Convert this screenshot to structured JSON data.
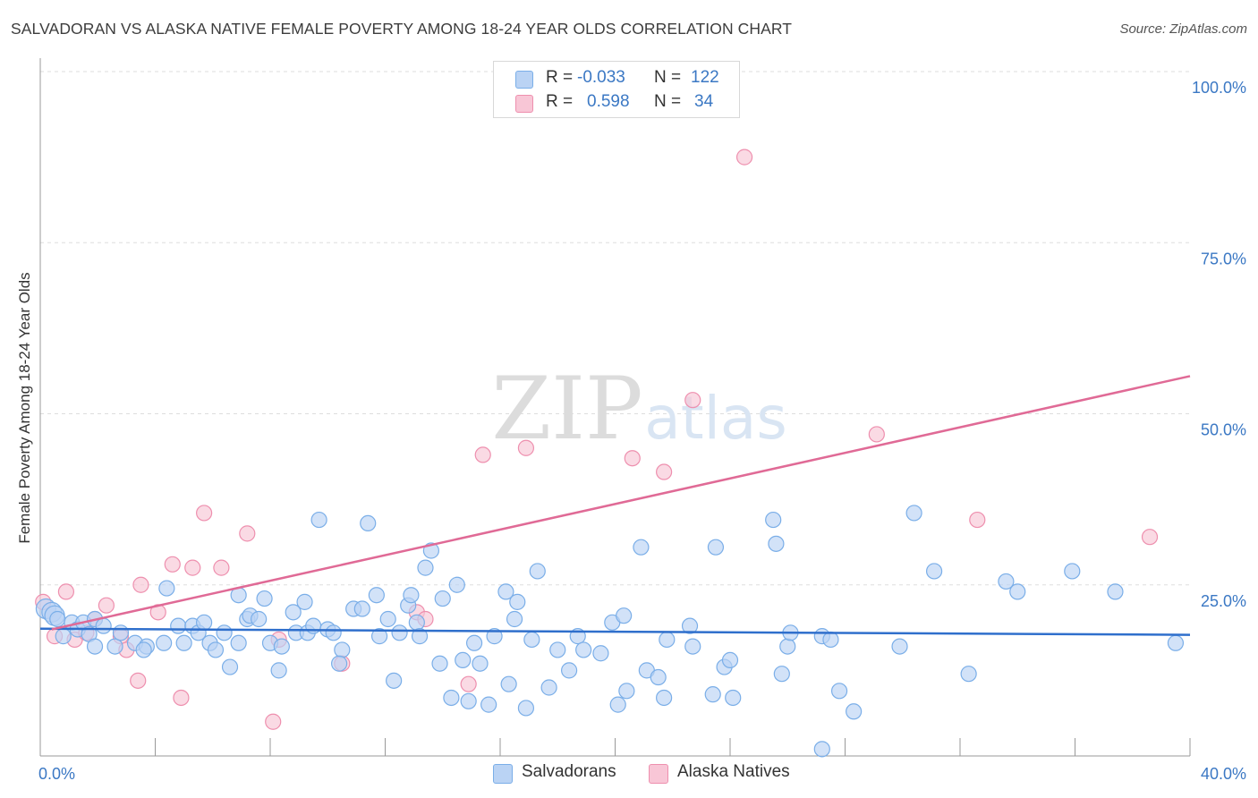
{
  "title": "SALVADORAN VS ALASKA NATIVE FEMALE POVERTY AMONG 18-24 YEAR OLDS CORRELATION CHART",
  "source": "Source: ZipAtlas.com",
  "watermark": {
    "zip": "ZIP",
    "atlas": "atlas"
  },
  "legend": {
    "r_label": "R =",
    "n_label": "N =",
    "rows": [
      {
        "name": "Salvadorans",
        "r": "-0.033",
        "n": "122",
        "color": "#7aaee8",
        "fill": "#bad3f4"
      },
      {
        "name": "Alaska Natives",
        "r": "0.598",
        "n": "34",
        "color": "#ee8fae",
        "fill": "#f8c6d6"
      }
    ]
  },
  "colors": {
    "blue_line": "#2f6fcc",
    "pink_line": "#e06a96",
    "axis_label": "#3b78c4",
    "grid": "#dddddd"
  },
  "chart_data": {
    "type": "scatter",
    "title": "SALVADORAN VS ALASKA NATIVE FEMALE POVERTY AMONG 18-24 YEAR OLDS CORRELATION CHART",
    "xlabel": "",
    "ylabel": "Female Poverty Among 18-24 Year Olds",
    "xlim": [
      0,
      40
    ],
    "ylim": [
      0,
      105
    ],
    "x_tick_labels": [
      {
        "value": 0,
        "label": "0.0%"
      },
      {
        "value": 40,
        "label": "40.0%"
      }
    ],
    "y_tick_labels": [
      {
        "value": 25,
        "label": "25.0%"
      },
      {
        "value": 50,
        "label": "50.0%"
      },
      {
        "value": 75,
        "label": "75.0%"
      },
      {
        "value": 100,
        "label": "100.0%"
      }
    ],
    "grid": true,
    "legend_position": "top-center",
    "series": [
      {
        "name": "Salvadorans",
        "trend": [
          [
            0,
            18.6
          ],
          [
            40,
            17.7
          ]
        ],
        "points": [
          [
            0.2,
            21.5
          ],
          [
            0.4,
            21.0
          ],
          [
            0.5,
            20.5
          ],
          [
            0.6,
            20.0
          ],
          [
            0.8,
            17.5
          ],
          [
            1.1,
            19.5
          ],
          [
            1.3,
            18.5
          ],
          [
            1.5,
            19.5
          ],
          [
            1.7,
            17.8
          ],
          [
            1.9,
            20.0
          ],
          [
            2.2,
            19.0
          ],
          [
            1.9,
            16.0
          ],
          [
            2.6,
            16.0
          ],
          [
            2.8,
            18.0
          ],
          [
            3.3,
            16.5
          ],
          [
            3.7,
            16.0
          ],
          [
            4.3,
            16.5
          ],
          [
            3.6,
            15.5
          ],
          [
            4.4,
            24.5
          ],
          [
            4.8,
            19.0
          ],
          [
            5.0,
            16.5
          ],
          [
            5.3,
            19.0
          ],
          [
            5.5,
            18.0
          ],
          [
            5.7,
            19.5
          ],
          [
            5.9,
            16.5
          ],
          [
            6.1,
            15.5
          ],
          [
            6.4,
            18.0
          ],
          [
            6.6,
            13.0
          ],
          [
            6.9,
            16.5
          ],
          [
            6.9,
            23.5
          ],
          [
            7.2,
            20.0
          ],
          [
            7.3,
            20.5
          ],
          [
            7.6,
            20.0
          ],
          [
            7.8,
            23.0
          ],
          [
            8.0,
            16.5
          ],
          [
            8.3,
            12.5
          ],
          [
            8.4,
            16.0
          ],
          [
            8.8,
            21.0
          ],
          [
            8.9,
            18.0
          ],
          [
            9.2,
            22.5
          ],
          [
            9.3,
            18.0
          ],
          [
            9.5,
            19.0
          ],
          [
            9.7,
            34.5
          ],
          [
            10.0,
            18.5
          ],
          [
            10.2,
            18.0
          ],
          [
            10.5,
            15.5
          ],
          [
            10.4,
            13.5
          ],
          [
            10.9,
            21.5
          ],
          [
            11.2,
            21.5
          ],
          [
            11.4,
            34.0
          ],
          [
            11.7,
            23.5
          ],
          [
            11.8,
            17.5
          ],
          [
            12.1,
            20.0
          ],
          [
            12.3,
            11.0
          ],
          [
            12.5,
            18.0
          ],
          [
            12.8,
            22.0
          ],
          [
            12.9,
            23.5
          ],
          [
            13.1,
            19.5
          ],
          [
            13.4,
            27.5
          ],
          [
            13.6,
            30.0
          ],
          [
            13.2,
            17.5
          ],
          [
            13.9,
            13.5
          ],
          [
            14.0,
            23.0
          ],
          [
            14.3,
            8.5
          ],
          [
            14.5,
            25.0
          ],
          [
            14.7,
            14.0
          ],
          [
            14.9,
            8.0
          ],
          [
            15.1,
            16.5
          ],
          [
            15.3,
            13.5
          ],
          [
            15.6,
            7.5
          ],
          [
            15.8,
            17.5
          ],
          [
            16.2,
            24.0
          ],
          [
            16.3,
            10.5
          ],
          [
            16.5,
            20.0
          ],
          [
            16.6,
            22.5
          ],
          [
            16.9,
            7.0
          ],
          [
            17.1,
            17.0
          ],
          [
            17.3,
            27.0
          ],
          [
            17.7,
            10.0
          ],
          [
            18.0,
            15.5
          ],
          [
            18.4,
            12.5
          ],
          [
            18.7,
            17.5
          ],
          [
            18.9,
            15.5
          ],
          [
            19.5,
            15.0
          ],
          [
            19.9,
            19.5
          ],
          [
            20.1,
            7.5
          ],
          [
            20.3,
            20.5
          ],
          [
            20.4,
            9.5
          ],
          [
            20.9,
            30.5
          ],
          [
            21.1,
            12.5
          ],
          [
            21.5,
            11.5
          ],
          [
            21.7,
            8.5
          ],
          [
            21.8,
            17.0
          ],
          [
            22.6,
            19.0
          ],
          [
            22.7,
            16.0
          ],
          [
            23.4,
            9.0
          ],
          [
            23.5,
            30.5
          ],
          [
            23.8,
            13.0
          ],
          [
            24.0,
            14.0
          ],
          [
            24.1,
            8.5
          ],
          [
            25.5,
            34.5
          ],
          [
            25.6,
            31.0
          ],
          [
            25.8,
            12.0
          ],
          [
            26.0,
            16.0
          ],
          [
            26.1,
            18.0
          ],
          [
            27.2,
            17.5
          ],
          [
            27.2,
            1.0
          ],
          [
            27.5,
            17.0
          ],
          [
            27.8,
            9.5
          ],
          [
            28.3,
            6.5
          ],
          [
            29.9,
            16.0
          ],
          [
            30.4,
            35.5
          ],
          [
            31.1,
            27.0
          ],
          [
            32.3,
            12.0
          ],
          [
            33.6,
            25.5
          ],
          [
            34.0,
            24.0
          ],
          [
            35.9,
            27.0
          ],
          [
            37.4,
            24.0
          ],
          [
            39.5,
            16.5
          ]
        ]
      },
      {
        "name": "Alaska Natives",
        "trend": [
          [
            0.4,
            18.5
          ],
          [
            40,
            55.5
          ]
        ],
        "points": [
          [
            0.1,
            22.5
          ],
          [
            0.5,
            17.5
          ],
          [
            0.9,
            24.0
          ],
          [
            1.2,
            17.0
          ],
          [
            1.6,
            18.0
          ],
          [
            1.9,
            20.0
          ],
          [
            2.3,
            22.0
          ],
          [
            2.8,
            17.5
          ],
          [
            3.0,
            15.5
          ],
          [
            3.4,
            11.0
          ],
          [
            3.5,
            25.0
          ],
          [
            4.1,
            21.0
          ],
          [
            4.6,
            28.0
          ],
          [
            4.9,
            8.5
          ],
          [
            5.3,
            27.5
          ],
          [
            5.7,
            35.5
          ],
          [
            6.3,
            27.5
          ],
          [
            7.2,
            32.5
          ],
          [
            8.1,
            5.0
          ],
          [
            8.3,
            17.0
          ],
          [
            10.5,
            13.5
          ],
          [
            13.1,
            21.0
          ],
          [
            13.4,
            20.0
          ],
          [
            14.9,
            10.5
          ],
          [
            15.4,
            44.0
          ],
          [
            16.9,
            45.0
          ],
          [
            20.6,
            43.5
          ],
          [
            21.7,
            41.5
          ],
          [
            22.7,
            52.0
          ],
          [
            24.5,
            87.5
          ],
          [
            29.1,
            47.0
          ],
          [
            32.6,
            34.5
          ],
          [
            38.6,
            32.0
          ]
        ]
      }
    ]
  }
}
